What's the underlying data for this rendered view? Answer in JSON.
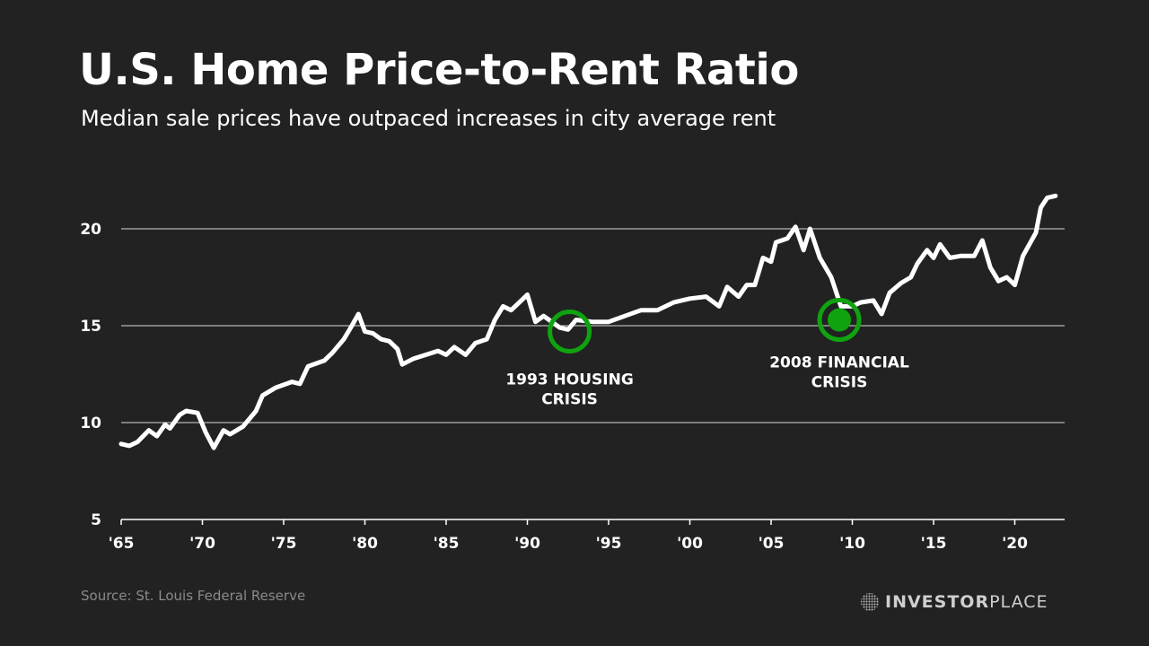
{
  "header": {
    "title": "U.S. Home Price-to-Rent Ratio",
    "subtitle": "Median sale prices have outpaced increases in city average rent"
  },
  "footer": {
    "source": "Source: St. Louis Federal Reserve",
    "logo_bold": "INVESTOR",
    "logo_light": "PLACE"
  },
  "colors": {
    "background": "#222222",
    "line": "#ffffff",
    "accent": "#0fa30f"
  },
  "chart_data": {
    "type": "line",
    "title": "U.S. Home Price-to-Rent Ratio",
    "xlabel": "",
    "ylabel": "",
    "xlim": [
      1965,
      2023.2
    ],
    "ylim": [
      5,
      22
    ],
    "yticks": [
      {
        "v": 5,
        "label": "5"
      },
      {
        "v": 10,
        "label": "10"
      },
      {
        "v": 15,
        "label": "15"
      },
      {
        "v": 20,
        "label": "20"
      }
    ],
    "xticks": [
      {
        "v": 1965,
        "label": "'65"
      },
      {
        "v": 1970,
        "label": "'70"
      },
      {
        "v": 1975,
        "label": "'75"
      },
      {
        "v": 1980,
        "label": "'80"
      },
      {
        "v": 1985,
        "label": "'85"
      },
      {
        "v": 1990,
        "label": "'90"
      },
      {
        "v": 1995,
        "label": "'95"
      },
      {
        "v": 2000,
        "label": "'00"
      },
      {
        "v": 2005,
        "label": "'05"
      },
      {
        "v": 2010,
        "label": "'10"
      },
      {
        "v": 2015,
        "label": "'15"
      },
      {
        "v": 2020,
        "label": "'20"
      }
    ],
    "grid": true,
    "series": [
      {
        "name": "Price-to-rent ratio",
        "x": [
          1965,
          1965.5,
          1966,
          1966.7,
          1967.2,
          1967.7,
          1968,
          1968.6,
          1969,
          1969.7,
          1970.2,
          1970.7,
          1971.3,
          1971.7,
          1972.5,
          1973.3,
          1973.7,
          1974.5,
          1975.5,
          1976,
          1976.5,
          1977.5,
          1978,
          1978.7,
          1979.2,
          1979.6,
          1980,
          1980.5,
          1981,
          1981.5,
          1982,
          1982.3,
          1983,
          1984.5,
          1985,
          1985.5,
          1986.2,
          1986.8,
          1987.5,
          1988,
          1988.5,
          1989,
          1989.5,
          1990,
          1990.5,
          1991,
          1992,
          1992.5,
          1993,
          1994,
          1995,
          1996,
          1997,
          1998,
          1999,
          2000,
          2001,
          2001.8,
          2002.3,
          2003,
          2003.5,
          2004,
          2004.5,
          2005,
          2005.3,
          2006,
          2006.5,
          2007,
          2007.4,
          2008,
          2008.7,
          2009.3,
          2010,
          2010.5,
          2011.3,
          2011.8,
          2012.3,
          2013,
          2013.6,
          2014,
          2014.6,
          2015,
          2015.4,
          2016,
          2016.7,
          2017.5,
          2018,
          2018.5,
          2019,
          2019.5,
          2020,
          2020.5,
          2021.3,
          2021.6,
          2022,
          2022.5
        ],
        "y": [
          8.9,
          8.8,
          9.0,
          9.6,
          9.3,
          9.9,
          9.7,
          10.4,
          10.6,
          10.5,
          9.5,
          8.7,
          9.6,
          9.4,
          9.8,
          10.6,
          11.4,
          11.8,
          12.1,
          12.0,
          12.9,
          13.2,
          13.6,
          14.3,
          15.0,
          15.6,
          14.7,
          14.6,
          14.3,
          14.2,
          13.8,
          13.0,
          13.3,
          13.7,
          13.5,
          13.9,
          13.5,
          14.1,
          14.3,
          15.3,
          16.0,
          15.8,
          16.2,
          16.6,
          15.2,
          15.5,
          14.9,
          14.8,
          15.3,
          15.2,
          15.2,
          15.5,
          15.8,
          15.8,
          16.2,
          16.4,
          16.5,
          16.0,
          17.0,
          16.5,
          17.1,
          17.1,
          18.5,
          18.3,
          19.3,
          19.5,
          20.1,
          18.9,
          20.0,
          18.5,
          17.5,
          16.0,
          16.0,
          16.2,
          16.3,
          15.6,
          16.7,
          17.2,
          17.5,
          18.2,
          18.9,
          18.5,
          19.2,
          18.5,
          18.6,
          18.6,
          19.4,
          18.0,
          17.3,
          17.5,
          17.1,
          18.6,
          19.8,
          21.1,
          21.6,
          21.7
        ]
      }
    ],
    "annotations": [
      {
        "x": 1992.6,
        "y": 14.7,
        "style": "ring",
        "line1": "1993 HOUSING",
        "line2": "CRISIS"
      },
      {
        "x": 2009.2,
        "y": 15.3,
        "style": "filled",
        "line1": "2008 FINANCIAL",
        "line2": "CRISIS"
      }
    ]
  }
}
